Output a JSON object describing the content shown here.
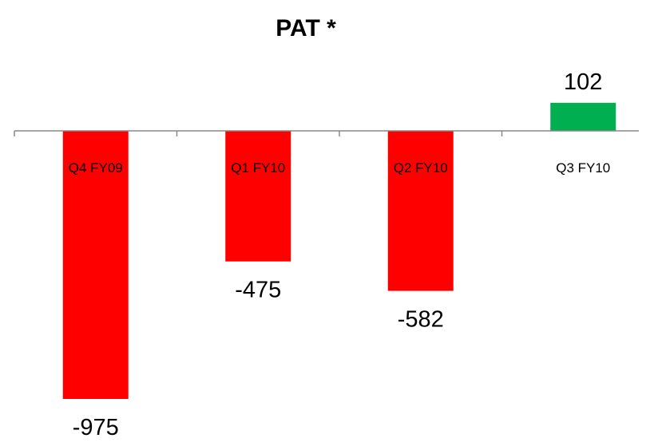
{
  "chart_data": {
    "type": "bar",
    "title": "PAT *",
    "categories": [
      "Q4 FY09",
      "Q1 FY10",
      "Q2 FY10",
      "Q3 FY10"
    ],
    "values": [
      -975,
      -475,
      -582,
      102
    ],
    "data_labels": [
      "-975",
      "-475",
      "-582",
      "102"
    ],
    "colors": {
      "negative": "#ff0000",
      "positive": "#00b050",
      "axis": "#888888"
    },
    "xlabel": "",
    "ylabel": "",
    "grid": false,
    "legend": "none"
  }
}
